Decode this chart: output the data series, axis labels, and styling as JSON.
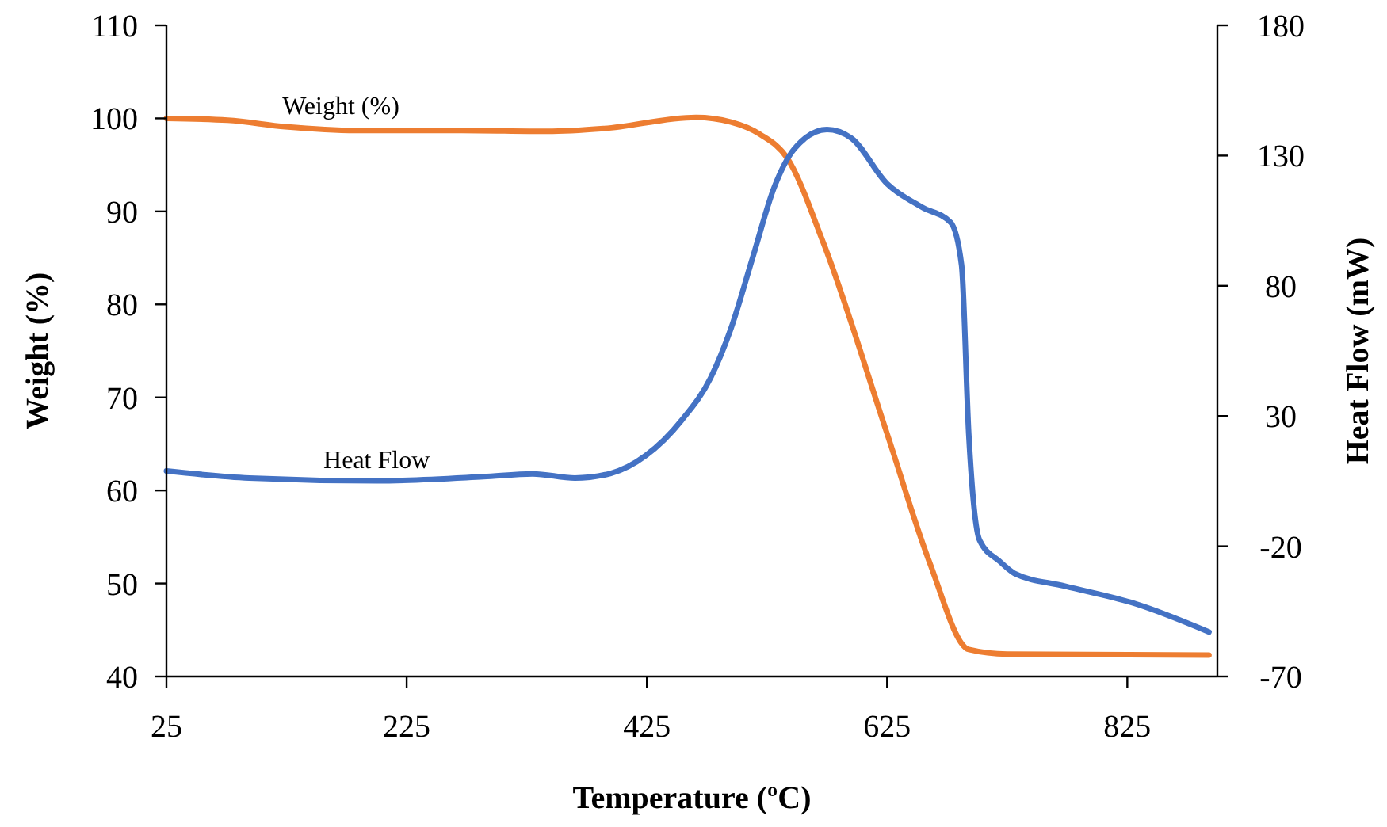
{
  "chart_data": {
    "type": "line",
    "xlabel": "Temperature (ºC)",
    "ylabel": "Weight (%)",
    "y2label": "Heat Flow (mW)",
    "xlim": [
      25,
      900
    ],
    "xticks": [
      25,
      225,
      425,
      625,
      825
    ],
    "ylim": [
      40,
      110
    ],
    "yticks": [
      40,
      50,
      60,
      70,
      80,
      90,
      100,
      110
    ],
    "y2lim": [
      -70,
      180
    ],
    "y2ticks": [
      -70,
      -20,
      30,
      80,
      130,
      180
    ],
    "grid": false,
    "marker": "none",
    "line_style": "solid",
    "series": [
      {
        "name": "Weight (%)",
        "color": "#ed7d31",
        "x": [
          25,
          76,
          124,
          183,
          271,
          342,
          389,
          466,
          495,
          519,
          542,
          572,
          625,
          660,
          693,
          725,
          893
        ],
        "values": [
          100,
          99.8,
          99.1,
          98.7,
          98.7,
          98.6,
          98.9,
          100.1,
          99.6,
          98.3,
          95.7,
          86.6,
          66.1,
          52.4,
          42.9,
          42.4,
          42.3
        ]
      },
      {
        "name": "Heat Flow",
        "color": "#4472c4",
        "axis": "y2",
        "x": [
          25,
          94,
          200,
          289,
          330,
          365,
          395,
          424,
          454,
          478,
          495,
          513,
          531,
          548,
          575,
          595,
          625,
          654,
          678,
          687,
          693,
          702,
          719,
          731,
          773,
          832,
          893
        ],
        "values": [
          8.9,
          6.2,
          5.1,
          6.7,
          7.8,
          6.2,
          8,
          14.8,
          28.4,
          44.6,
          63.6,
          90.7,
          117.8,
          132.7,
          140,
          136.8,
          119.2,
          110.2,
          104.3,
          88,
          23,
          -17.7,
          -25.9,
          -30.4,
          -35.3,
          -42.1,
          -52.9
        ]
      }
    ]
  }
}
